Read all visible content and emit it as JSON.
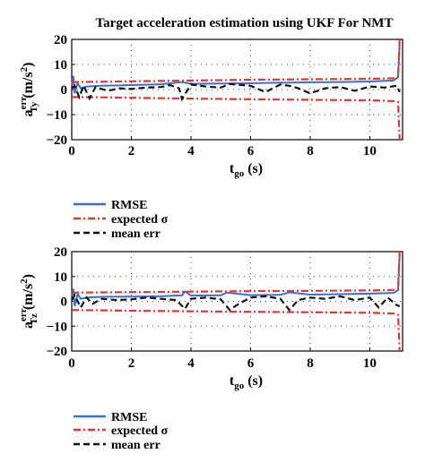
{
  "chart_data": [
    {
      "type": "line",
      "title": "Target acceleration estimation using UKF For NMT",
      "xlabel": {
        "main": "t",
        "sub": "go",
        "unit": "(s)"
      },
      "ylabel": {
        "main": "a",
        "sup": "err",
        "sub": "Ty",
        "unit": "(m/s",
        "unit_sup": "2",
        "unit_close": ")"
      },
      "xlim": [
        0,
        11.1
      ],
      "ylim": [
        -20,
        20
      ],
      "xticks": [
        "0",
        "2",
        "4",
        "6",
        "8",
        "10"
      ],
      "yticks": [
        "20",
        "10",
        "0",
        "−10",
        "−20"
      ],
      "grid": true,
      "legend_position": "below",
      "series": [
        {
          "name": "RMSE",
          "color": "#3a6fd0",
          "style": "solid",
          "x": [
            0,
            0.05,
            0.1,
            0.2,
            0.3,
            0.5,
            1,
            2,
            3,
            3.7,
            4,
            5,
            6,
            7,
            7.1,
            8,
            9,
            10,
            10.8,
            10.95,
            11
          ],
          "y": [
            1.5,
            5.5,
            -1.5,
            2.5,
            0.5,
            1.2,
            1.5,
            1.8,
            2.1,
            3.0,
            2.3,
            2.4,
            2.5,
            2.8,
            2.7,
            2.9,
            3.0,
            3.2,
            3.6,
            5.0,
            18
          ]
        },
        {
          "name": "expected σ",
          "color": "#e8352a",
          "style": "dashdot",
          "x": [
            0,
            1,
            2,
            4,
            6,
            8,
            10,
            10.8,
            10.95,
            11
          ],
          "y": [
            3.0,
            3.1,
            3.3,
            3.6,
            3.9,
            4.1,
            4.3,
            4.5,
            5.0,
            20
          ]
        },
        {
          "name": "expected σ (lower)",
          "color": "#e8352a",
          "style": "dashdot",
          "x": [
            0,
            1,
            2,
            4,
            6,
            8,
            10,
            10.8,
            10.95,
            11
          ],
          "y": [
            -3.0,
            -3.1,
            -3.3,
            -3.6,
            -3.9,
            -4.1,
            -4.3,
            -4.6,
            -5.0,
            -20
          ]
        },
        {
          "name": "mean err",
          "color": "#111111",
          "style": "dashed",
          "x": [
            0,
            0.1,
            0.25,
            0.4,
            0.6,
            0.8,
            1.2,
            1.6,
            2,
            2.5,
            3,
            3.3,
            3.6,
            3.7,
            4,
            4.5,
            5,
            5.3,
            6,
            6.5,
            7,
            7.3,
            7.6,
            8,
            8.5,
            9,
            9.5,
            10,
            10.5,
            10.9,
            11
          ],
          "y": [
            0.5,
            1.5,
            -3.0,
            1.5,
            -3.5,
            1.0,
            -0.5,
            0.5,
            0.2,
            0.8,
            1.0,
            1.8,
            0.5,
            -3.8,
            2.0,
            1.2,
            0.8,
            2.2,
            1.5,
            -1.0,
            2.0,
            1.5,
            0.5,
            -1.5,
            0.5,
            1.0,
            -0.5,
            1.2,
            0.8,
            1.5,
            -1.0
          ]
        }
      ],
      "legend": [
        {
          "label": "RMSE",
          "color": "#3a6fd0",
          "style": "solid"
        },
        {
          "label": "expected σ",
          "color": "#e8352a",
          "style": "dashdot"
        },
        {
          "label": "mean err",
          "color": "#111111",
          "style": "dashed"
        }
      ]
    },
    {
      "type": "line",
      "title": "",
      "xlabel": {
        "main": "t",
        "sub": "go",
        "unit": "(s)"
      },
      "ylabel": {
        "main": "a",
        "sup": "err",
        "sub": "Tz",
        "unit": "(m/s",
        "unit_sup": "2",
        "unit_close": ")"
      },
      "xlim": [
        0,
        11.1
      ],
      "ylim": [
        -20,
        20
      ],
      "xticks": [
        "0",
        "2",
        "4",
        "6",
        "8",
        "10"
      ],
      "yticks": [
        "20",
        "10",
        "0",
        "−10",
        "−20"
      ],
      "grid": true,
      "legend_position": "below",
      "series": [
        {
          "name": "RMSE",
          "color": "#3a6fd0",
          "style": "solid",
          "x": [
            0,
            0.05,
            0.1,
            0.2,
            0.3,
            0.5,
            1,
            2,
            3,
            3.7,
            3.8,
            4,
            5,
            5.2,
            6,
            7,
            7.3,
            8,
            9,
            10,
            10.8,
            10.95,
            11
          ],
          "y": [
            2.0,
            5.0,
            -2.0,
            3.0,
            1.0,
            1.5,
            1.8,
            1.9,
            2.0,
            2.4,
            4.0,
            2.3,
            2.4,
            3.5,
            2.5,
            2.6,
            3.6,
            2.7,
            2.9,
            3.1,
            3.4,
            4.5,
            19
          ]
        },
        {
          "name": "expected σ",
          "color": "#e8352a",
          "style": "dashdot",
          "x": [
            0,
            1,
            2,
            4,
            6,
            8,
            10,
            10.8,
            10.95,
            11
          ],
          "y": [
            3.5,
            3.6,
            3.7,
            3.9,
            4.1,
            4.2,
            4.4,
            4.6,
            5.0,
            20
          ]
        },
        {
          "name": "expected σ (lower)",
          "color": "#e8352a",
          "style": "dashdot",
          "x": [
            0,
            1,
            2,
            4,
            6,
            8,
            10,
            10.8,
            10.95,
            11
          ],
          "y": [
            -3.5,
            -3.6,
            -3.8,
            -4.0,
            -4.2,
            -4.4,
            -4.6,
            -4.9,
            -5.5,
            -20
          ]
        },
        {
          "name": "mean err",
          "color": "#111111",
          "style": "dashed",
          "x": [
            0,
            0.1,
            0.3,
            0.5,
            0.7,
            1,
            1.5,
            2,
            2.5,
            3,
            3.5,
            3.8,
            4,
            4.5,
            5,
            5.3,
            5.6,
            6,
            6.5,
            7,
            7.3,
            7.6,
            8,
            8.5,
            9,
            9.5,
            10,
            10.3,
            10.6,
            10.9,
            11
          ],
          "y": [
            0.5,
            2.5,
            -2.5,
            1.5,
            -1.0,
            1.0,
            0.5,
            0.8,
            1.5,
            1.0,
            0.5,
            -3.0,
            1.0,
            1.5,
            0.8,
            -3.5,
            -1.0,
            1.5,
            2.0,
            1.0,
            -3.5,
            0.5,
            1.5,
            1.0,
            2.0,
            0.5,
            1.5,
            -2.5,
            1.5,
            -1.5,
            -2.0
          ]
        }
      ],
      "legend": [
        {
          "label": "RMSE",
          "color": "#3a6fd0",
          "style": "solid"
        },
        {
          "label": "expected σ",
          "color": "#e8352a",
          "style": "dashdot"
        },
        {
          "label": "mean err",
          "color": "#111111",
          "style": "dashed"
        }
      ]
    }
  ]
}
